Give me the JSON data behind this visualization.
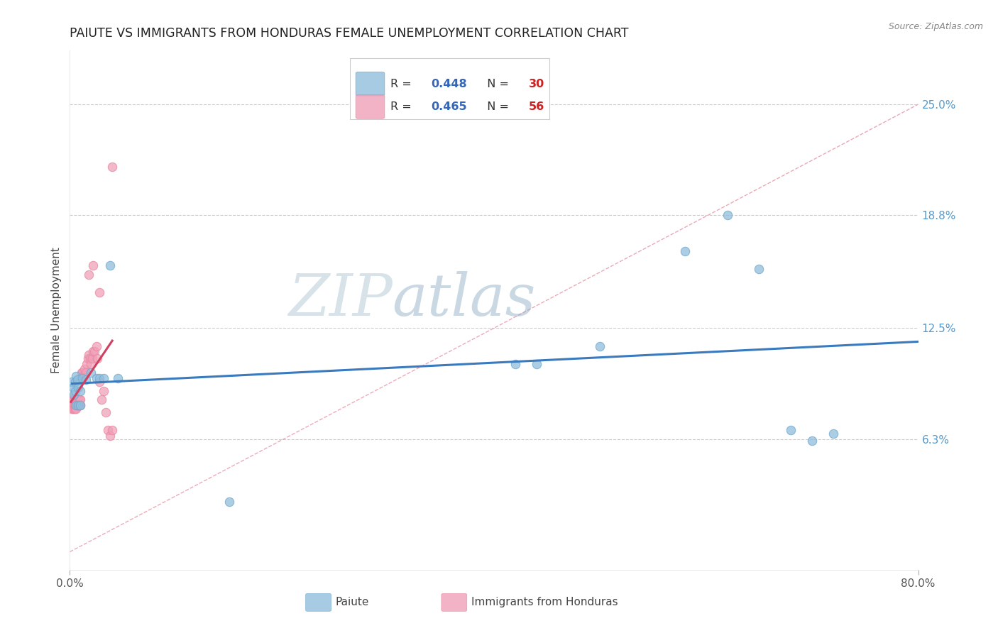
{
  "title": "PAIUTE VS IMMIGRANTS FROM HONDURAS FEMALE UNEMPLOYMENT CORRELATION CHART",
  "source": "Source: ZipAtlas.com",
  "ylabel": "Female Unemployment",
  "xlim": [
    0.0,
    0.8
  ],
  "ylim": [
    -0.01,
    0.28
  ],
  "plot_ylim": [
    0.0,
    0.28
  ],
  "ytick_labels": [
    "6.3%",
    "12.5%",
    "18.8%",
    "25.0%"
  ],
  "ytick_values": [
    0.063,
    0.125,
    0.188,
    0.25
  ],
  "xtick_labels": [
    "0.0%",
    "80.0%"
  ],
  "xtick_values": [
    0.0,
    0.8
  ],
  "watermark_zip": "ZIP",
  "watermark_atlas": "atlas",
  "watermark_color_zip": "#c8d8e8",
  "watermark_color_atlas": "#a8c4d8",
  "paiute_color": "#90bedd",
  "honduras_color": "#f0a0b8",
  "paiute_edge_color": "#70a8cc",
  "honduras_edge_color": "#e888a0",
  "paiute_line_color": "#3a7abf",
  "honduras_line_color": "#d04060",
  "ref_line_color": "#e8a0b0",
  "paiute_R": 0.448,
  "paiute_N": 30,
  "honduras_R": 0.465,
  "honduras_N": 56,
  "legend_R_color": "#3366bb",
  "legend_N_color": "#cc2222",
  "paiute_x": [
    0.002,
    0.003,
    0.004,
    0.005,
    0.005,
    0.006,
    0.007,
    0.008,
    0.01,
    0.012,
    0.015,
    0.02,
    0.025,
    0.028,
    0.032,
    0.038,
    0.045,
    0.42,
    0.44,
    0.5,
    0.58,
    0.62,
    0.65,
    0.68,
    0.7,
    0.72,
    0.006,
    0.008,
    0.01,
    0.15
  ],
  "paiute_y": [
    0.095,
    0.092,
    0.088,
    0.095,
    0.09,
    0.098,
    0.096,
    0.092,
    0.09,
    0.097,
    0.096,
    0.1,
    0.097,
    0.097,
    0.097,
    0.16,
    0.097,
    0.105,
    0.105,
    0.115,
    0.168,
    0.188,
    0.158,
    0.068,
    0.062,
    0.066,
    0.082,
    0.082,
    0.082,
    0.028
  ],
  "honduras_x": [
    0.001,
    0.001,
    0.002,
    0.002,
    0.002,
    0.003,
    0.003,
    0.003,
    0.003,
    0.004,
    0.004,
    0.004,
    0.004,
    0.005,
    0.005,
    0.005,
    0.005,
    0.006,
    0.006,
    0.006,
    0.007,
    0.007,
    0.008,
    0.008,
    0.009,
    0.009,
    0.01,
    0.01,
    0.011,
    0.011,
    0.012,
    0.012,
    0.013,
    0.014,
    0.015,
    0.016,
    0.017,
    0.018,
    0.019,
    0.02,
    0.021,
    0.022,
    0.023,
    0.025,
    0.026,
    0.028,
    0.03,
    0.032,
    0.034,
    0.036,
    0.038,
    0.04,
    0.018,
    0.022,
    0.028,
    0.04
  ],
  "honduras_y": [
    0.086,
    0.082,
    0.082,
    0.085,
    0.08,
    0.082,
    0.085,
    0.082,
    0.08,
    0.082,
    0.085,
    0.082,
    0.08,
    0.082,
    0.085,
    0.082,
    0.08,
    0.082,
    0.085,
    0.08,
    0.082,
    0.085,
    0.082,
    0.085,
    0.082,
    0.085,
    0.082,
    0.085,
    0.098,
    0.1,
    0.098,
    0.1,
    0.098,
    0.102,
    0.1,
    0.105,
    0.108,
    0.11,
    0.108,
    0.105,
    0.108,
    0.112,
    0.112,
    0.115,
    0.108,
    0.095,
    0.085,
    0.09,
    0.078,
    0.068,
    0.065,
    0.068,
    0.155,
    0.16,
    0.145,
    0.215
  ]
}
